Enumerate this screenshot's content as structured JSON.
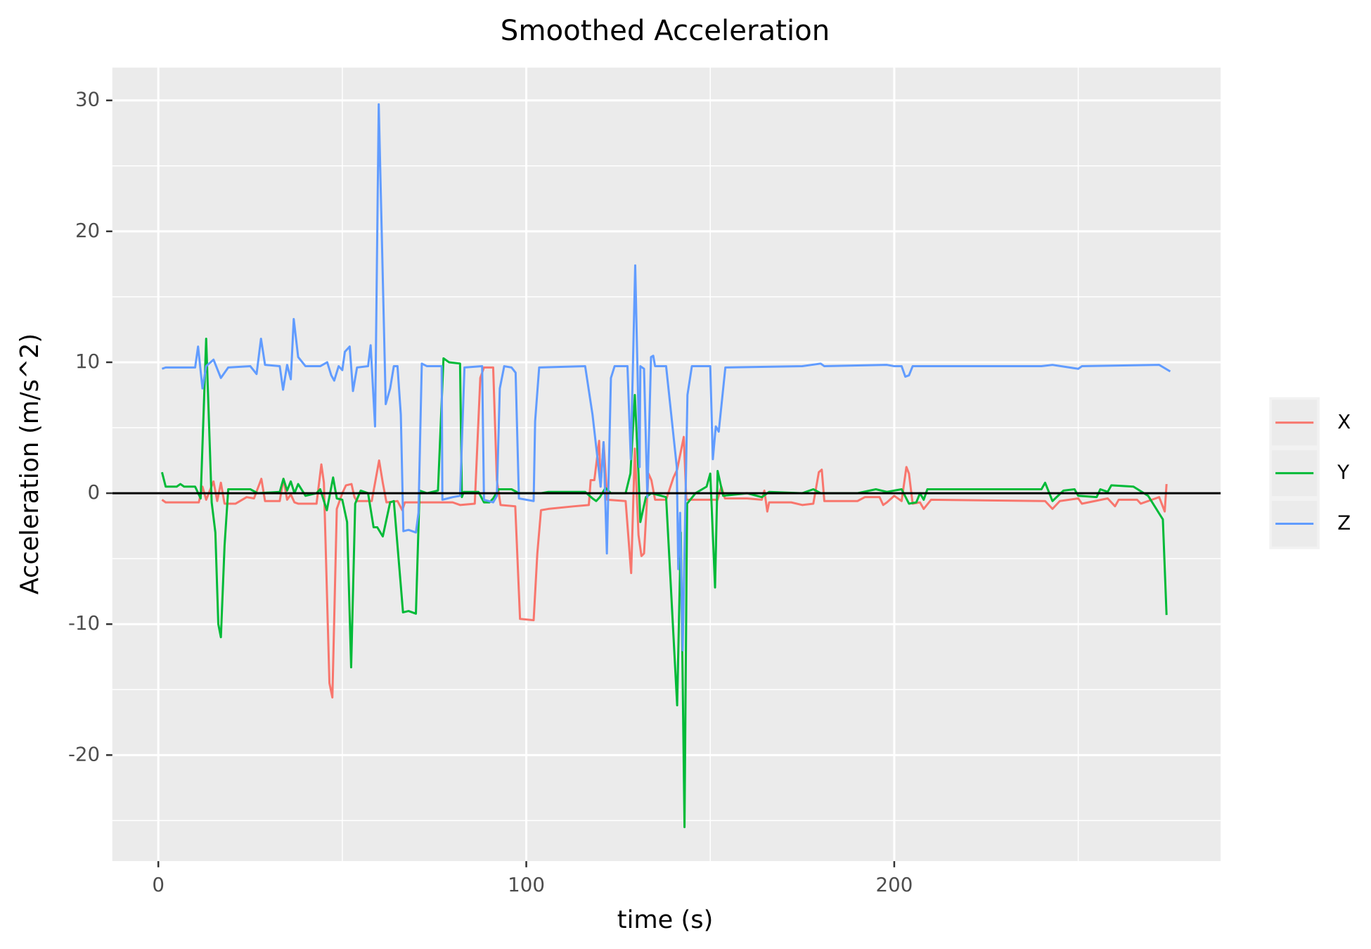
{
  "chart_data": {
    "type": "line",
    "title": "Smoothed Acceleration",
    "x_label": "time (s)",
    "y_label": "Acceleration (m/s^2)",
    "xlim": [
      -12.5,
      288.7
    ],
    "ylim": [
      -28.1,
      32.5
    ],
    "xticks": [
      0,
      100,
      200
    ],
    "yticks": [
      -20,
      -10,
      0,
      10,
      20,
      30
    ],
    "xminor": [
      50,
      150,
      250
    ],
    "yminor": [
      -25,
      -15,
      -5,
      5,
      15,
      25
    ],
    "grid": true,
    "hline": 0,
    "legend": "right",
    "series": [
      {
        "name": "X",
        "color": "#F8766D",
        "x": [
          1,
          2,
          10,
          11,
          12,
          13,
          15,
          16,
          17,
          18,
          21,
          24,
          26,
          28,
          29,
          33,
          34,
          35,
          36,
          37,
          38,
          43,
          44.3,
          45,
          46.5,
          47.3,
          48.5,
          50,
          51,
          52.5,
          53.3,
          54,
          58,
          60,
          61,
          62,
          65,
          66.3,
          67,
          80,
          82,
          86,
          87.5,
          88.5,
          91,
          92,
          93,
          97,
          98.3,
          102,
          103,
          104,
          106,
          113,
          117,
          117.5,
          118.5,
          119.8,
          120.2,
          121,
          122,
          127,
          128.5,
          129.5,
          130.5,
          131.3,
          132,
          133.2,
          134,
          135,
          138,
          140,
          141,
          142.8,
          143.5,
          152,
          153,
          154,
          160,
          164,
          164.7,
          165.5,
          166,
          172,
          175,
          178,
          179.5,
          180.3,
          181,
          190,
          192,
          196,
          197,
          198,
          200,
          202,
          203.3,
          204,
          205,
          207,
          208,
          210,
          241,
          243,
          245,
          250,
          251,
          258,
          260,
          261,
          266,
          267,
          270,
          272,
          273.5,
          274
        ],
        "values": [
          -0.5,
          -0.7,
          -0.7,
          -0.7,
          0.5,
          -0.5,
          0.9,
          -0.6,
          0.8,
          -0.8,
          -0.8,
          -0.3,
          -0.4,
          1.1,
          -0.6,
          -0.6,
          1.1,
          -0.5,
          -0.1,
          -0.7,
          -0.8,
          -0.8,
          2.2,
          0.8,
          -14.5,
          -15.6,
          -1.2,
          0,
          0.6,
          0.7,
          -0.3,
          -0.6,
          -0.6,
          2.5,
          0.8,
          -0.7,
          -0.6,
          -1.3,
          -0.7,
          -0.7,
          -0.9,
          -0.8,
          8.8,
          9.6,
          9.6,
          1,
          -0.9,
          -1,
          -9.6,
          -9.7,
          -4.6,
          -1.3,
          -1.2,
          -1,
          -0.9,
          1,
          1,
          4,
          0.5,
          3.9,
          -0.5,
          -0.6,
          -6.1,
          3.4,
          -3.2,
          -4.8,
          -4.6,
          1.5,
          1,
          -0.5,
          -0.5,
          1.2,
          1.8,
          4.3,
          -0.5,
          -0.5,
          0.5,
          -0.4,
          -0.4,
          -0.5,
          0.2,
          -1.4,
          -0.7,
          -0.7,
          -0.9,
          -0.8,
          1.6,
          1.8,
          -0.6,
          -0.6,
          -0.3,
          -0.3,
          -0.9,
          -0.7,
          -0.2,
          -0.6,
          2,
          1.5,
          -0.8,
          -0.7,
          -1.2,
          -0.5,
          -0.6,
          -1.2,
          -0.6,
          -0.4,
          -0.8,
          -0.4,
          -1,
          -0.5,
          -0.5,
          -0.8,
          -0.5,
          -0.3,
          -1.4,
          0.7
        ]
      },
      {
        "name": "Y",
        "color": "#00BA38",
        "x": [
          1,
          2,
          5,
          6,
          7,
          10,
          11.5,
          13,
          14.5,
          15.5,
          16.3,
          17,
          18,
          19,
          25,
          27,
          33,
          34,
          35,
          36,
          37,
          38,
          40,
          43,
          44,
          45.8,
          47.5,
          48.5,
          50,
          51.3,
          52.4,
          53.5,
          55,
          57,
          58.5,
          59.5,
          61,
          63,
          64,
          66.5,
          68,
          70,
          71,
          73,
          76,
          77.5,
          79,
          82,
          82.5,
          83,
          87,
          88.5,
          90,
          91,
          92.5,
          96,
          98,
          104,
          106,
          116,
          118,
          119,
          120,
          121.5,
          123,
          127,
          128.3,
          129.5,
          130.5,
          131,
          132.5,
          134,
          138,
          141,
          142,
          143,
          143.7,
          146,
          149,
          150,
          151.3,
          152,
          153.5,
          160,
          164,
          166,
          175,
          178,
          180,
          190,
          195,
          198,
          202,
          204,
          206,
          207,
          208,
          209,
          240,
          241,
          243,
          246,
          249,
          250,
          255,
          256,
          258,
          259,
          265,
          269,
          273,
          274
        ],
        "values": [
          1.6,
          0.5,
          0.5,
          0.7,
          0.5,
          0.5,
          -0.4,
          11.8,
          -0.7,
          -3,
          -10,
          -11,
          -4,
          0.3,
          0.3,
          0,
          0.1,
          1.1,
          0.2,
          0.9,
          0,
          0.7,
          -0.2,
          0,
          0.3,
          -1.3,
          1.2,
          -0.4,
          -0.5,
          -2.2,
          -13.3,
          -0.8,
          0.2,
          0,
          -2.6,
          -2.6,
          -3.3,
          -0.7,
          -0.6,
          -9.1,
          -9,
          -9.2,
          0.2,
          0,
          0.2,
          10.3,
          10,
          9.9,
          -0.3,
          0.1,
          0.1,
          -0.7,
          -0.7,
          -0.4,
          0.3,
          0.3,
          0,
          0,
          0.1,
          0.1,
          -0.4,
          -0.6,
          -0.3,
          0.4,
          0,
          0,
          1.5,
          7.5,
          1.5,
          -2.2,
          -0.3,
          0,
          -0.3,
          -16.2,
          -3,
          -25.5,
          -0.8,
          0,
          0.5,
          1.5,
          -7.2,
          1.7,
          -0.2,
          0,
          -0.3,
          0.1,
          0,
          0.3,
          0,
          0,
          0.3,
          0.1,
          0.3,
          -0.8,
          -0.7,
          0,
          -0.5,
          0.3,
          0.3,
          0.8,
          -0.6,
          0.2,
          0.3,
          -0.2,
          -0.3,
          0.3,
          0.1,
          0.6,
          0.5,
          -0.2,
          -2,
          -9.3
        ]
      },
      {
        "name": "Z",
        "color": "#619CFF",
        "x": [
          1,
          2,
          10,
          10.8,
          12,
          13,
          15,
          17,
          19,
          25,
          26.7,
          27.9,
          29,
          33,
          33.9,
          35,
          36,
          36.8,
          38,
          40,
          44,
          45.9,
          47,
          47.8,
          49,
          50,
          50.7,
          52,
          52.9,
          54,
          57,
          57.7,
          58.9,
          59.9,
          61.8,
          63,
          64,
          65,
          65.9,
          66.6,
          68,
          70,
          70.7,
          71.6,
          73,
          77,
          77.2,
          80,
          82,
          83.2,
          88,
          88.5,
          91,
          92,
          92.8,
          94,
          96,
          97.1,
          98,
          102,
          102.4,
          103.5,
          116,
          118,
          119.5,
          120.2,
          121,
          121.9,
          123,
          124,
          127.5,
          128.4,
          129.6,
          130.8,
          131,
          132,
          132.9,
          133.9,
          134.5,
          135,
          138,
          140.9,
          141.3,
          141.8,
          142.5,
          143.8,
          145,
          150,
          150.7,
          151.5,
          152.3,
          154.1,
          175,
          180,
          181,
          198,
          200,
          202,
          203,
          204,
          205,
          240,
          243,
          250,
          251,
          272,
          275
        ],
        "values": [
          9.5,
          9.6,
          9.6,
          11.2,
          8,
          9.7,
          10.2,
          8.8,
          9.6,
          9.7,
          9.1,
          11.8,
          9.8,
          9.7,
          7.9,
          9.8,
          8.7,
          13.3,
          10.4,
          9.7,
          9.7,
          10,
          9,
          8.6,
          9.7,
          9.4,
          10.8,
          11.2,
          7.8,
          9.6,
          9.7,
          11.3,
          5.1,
          29.7,
          6.8,
          8,
          9.7,
          9.7,
          6,
          -2.9,
          -2.8,
          -3,
          -1.5,
          9.9,
          9.7,
          9.7,
          -0.5,
          -0.3,
          -0.2,
          9.6,
          9.7,
          -0.5,
          -0.7,
          -0.2,
          8,
          9.7,
          9.6,
          9.2,
          -0.4,
          -0.6,
          5.5,
          9.6,
          9.7,
          6,
          2.3,
          0.5,
          3.9,
          -4.6,
          8.8,
          9.7,
          9.7,
          2.6,
          17.4,
          2,
          9.7,
          9.5,
          -0.3,
          10.4,
          10.5,
          9.7,
          9.7,
          2,
          -5.8,
          -1.5,
          -12,
          7.5,
          9.7,
          9.7,
          2.6,
          5.1,
          4.7,
          9.6,
          9.7,
          9.9,
          9.7,
          9.8,
          9.7,
          9.7,
          8.9,
          9,
          9.7,
          9.7,
          9.8,
          9.5,
          9.7,
          9.8,
          9.3
        ]
      }
    ]
  }
}
